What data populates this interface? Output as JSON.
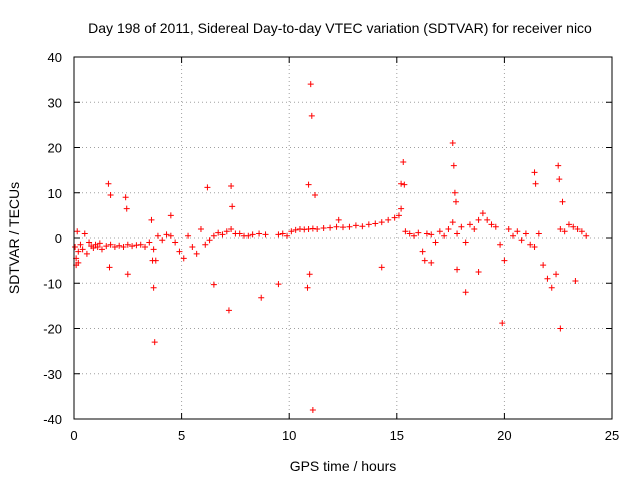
{
  "chart_data": {
    "type": "scatter",
    "title": "Day 198 of 2011, Sidereal Day-to-day VTEC variation (SDTVAR) for receiver nico",
    "xlabel": "GPS time / hours",
    "ylabel": "SDTVAR / TECUs",
    "xlim": [
      0,
      25
    ],
    "ylim": [
      -40,
      40
    ],
    "xticks": [
      "0",
      "5",
      "10",
      "15",
      "20",
      "25"
    ],
    "yticks": [
      "-40",
      "-30",
      "-20",
      "-10",
      "0",
      "10",
      "20",
      "30",
      "40"
    ],
    "grid": true,
    "marker": "+",
    "color": "#ff0000",
    "series": [
      {
        "name": "SDTVAR",
        "x": [
          0.05,
          0.1,
          0.15,
          0.2,
          0.3,
          0.4,
          0.5,
          0.6,
          0.7,
          0.8,
          0.9,
          1.0,
          1.1,
          1.2,
          1.3,
          1.5,
          1.7,
          1.9,
          2.1,
          2.3,
          2.5,
          2.7,
          2.9,
          3.1,
          3.3,
          3.5,
          3.7,
          3.9,
          4.1,
          4.3,
          4.5,
          4.7,
          4.9,
          5.1,
          5.3,
          5.5,
          5.7,
          5.9,
          6.1,
          6.3,
          6.5,
          6.7,
          6.9,
          7.1,
          7.3,
          7.5,
          7.7,
          7.9,
          8.1,
          8.3,
          8.6,
          8.9,
          9.5,
          9.7,
          9.9,
          10.1,
          10.3,
          10.5,
          10.7,
          10.9,
          11.1,
          11.3,
          11.6,
          11.9,
          12.2,
          12.5,
          12.8,
          13.1,
          13.4,
          13.7,
          14.0,
          14.3,
          14.6,
          14.9,
          15.1,
          15.2,
          15.4,
          15.6,
          15.8,
          16.0,
          16.2,
          16.4,
          16.6,
          16.8,
          17.0,
          17.2,
          17.4,
          17.6,
          17.8,
          18.0,
          18.2,
          18.4,
          18.6,
          18.8,
          19.0,
          19.2,
          19.4,
          19.6,
          19.8,
          20.0,
          20.2,
          20.4,
          20.6,
          20.8,
          21.0,
          21.2,
          21.4,
          21.6,
          21.8,
          22.0,
          22.2,
          22.4,
          22.6,
          22.8,
          23.0,
          23.2,
          23.4,
          23.6,
          23.8,
          1.6,
          1.7,
          1.65,
          2.4,
          2.45,
          2.5,
          3.6,
          3.65,
          3.7,
          3.75,
          4.5,
          6.2,
          6.5,
          7.2,
          7.3,
          7.35,
          8.7,
          9.5,
          10.9,
          10.95,
          11.0,
          11.05,
          11.1,
          10.85,
          11.2,
          12.3,
          15.2,
          15.3,
          15.35,
          14.3,
          16.3,
          17.6,
          17.65,
          17.7,
          17.75,
          17.8,
          18.2,
          18.8,
          19.9,
          21.4,
          21.45,
          22.5,
          22.55,
          22.6,
          22.7,
          23.3,
          0.1,
          0.2,
          3.8,
          16.6
        ],
        "y": [
          -2.0,
          -4.5,
          1.5,
          -3.0,
          -1.5,
          -2.5,
          1.0,
          -3.5,
          -1.0,
          -1.8,
          -2.2,
          -1.5,
          -2.0,
          -1.2,
          -2.5,
          -1.8,
          -1.5,
          -2.0,
          -1.7,
          -2.0,
          -1.5,
          -1.8,
          -1.6,
          -1.5,
          -2.0,
          -1.0,
          -2.5,
          0.5,
          -0.5,
          0.8,
          0.5,
          -1.0,
          -3.0,
          -4.5,
          0.5,
          -2.0,
          -3.5,
          2.0,
          -1.5,
          -0.5,
          0.5,
          1.2,
          0.8,
          1.5,
          2.0,
          1.0,
          1.0,
          0.5,
          0.5,
          0.8,
          1.0,
          0.8,
          0.8,
          1.0,
          0.5,
          1.5,
          1.8,
          2.0,
          1.9,
          2.0,
          2.1,
          2.0,
          2.2,
          2.3,
          2.5,
          2.4,
          2.5,
          2.8,
          2.6,
          3.0,
          3.2,
          3.5,
          4.0,
          4.5,
          5.0,
          6.5,
          1.5,
          1.0,
          0.5,
          1.2,
          -3.0,
          1.0,
          0.8,
          -1.0,
          1.5,
          0.5,
          2.0,
          3.5,
          1.0,
          2.5,
          -1.0,
          3.0,
          2.0,
          4.0,
          5.5,
          4.0,
          3.0,
          2.5,
          -1.5,
          -5.0,
          2.0,
          0.5,
          1.5,
          -0.5,
          1.0,
          -1.5,
          -2.0,
          1.0,
          -6.0,
          -9.0,
          -11.0,
          -8.0,
          2.0,
          1.5,
          3.0,
          2.5,
          2.0,
          1.5,
          0.5,
          12.0,
          9.5,
          -6.5,
          9.0,
          6.5,
          -8.0,
          4.0,
          -5.0,
          -11.0,
          -23.0,
          5.0,
          11.2,
          -10.3,
          -16.0,
          11.5,
          7.0,
          -13.2,
          -10.2,
          11.8,
          -8.0,
          34.0,
          27.0,
          -38.0,
          -11.0,
          9.5,
          4.0,
          12.0,
          16.8,
          11.8,
          -6.5,
          -5.0,
          21.0,
          16.0,
          10.0,
          8.0,
          -7.0,
          -12.0,
          -7.5,
          -18.8,
          14.5,
          12.0,
          16.0,
          13.0,
          -20.0,
          8.0,
          -9.5,
          -6.0,
          -5.5,
          -5.0,
          -5.5
        ]
      }
    ]
  }
}
